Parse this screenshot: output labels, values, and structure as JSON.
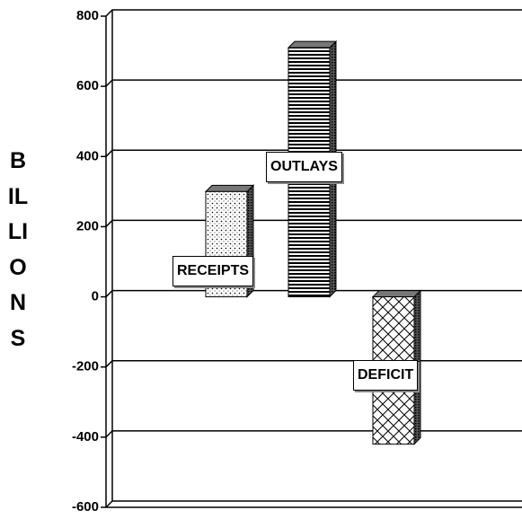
{
  "chart_data": {
    "type": "bar",
    "y_label": "BILLIONS",
    "categories": [
      "RECEIPTS",
      "OUTLAYS",
      "DEFICIT"
    ],
    "values": [
      300,
      710,
      -420
    ],
    "ylim": [
      -600,
      800
    ],
    "yticks": [
      -600,
      -400,
      -200,
      0,
      200,
      400,
      600,
      800
    ],
    "grid": true
  }
}
